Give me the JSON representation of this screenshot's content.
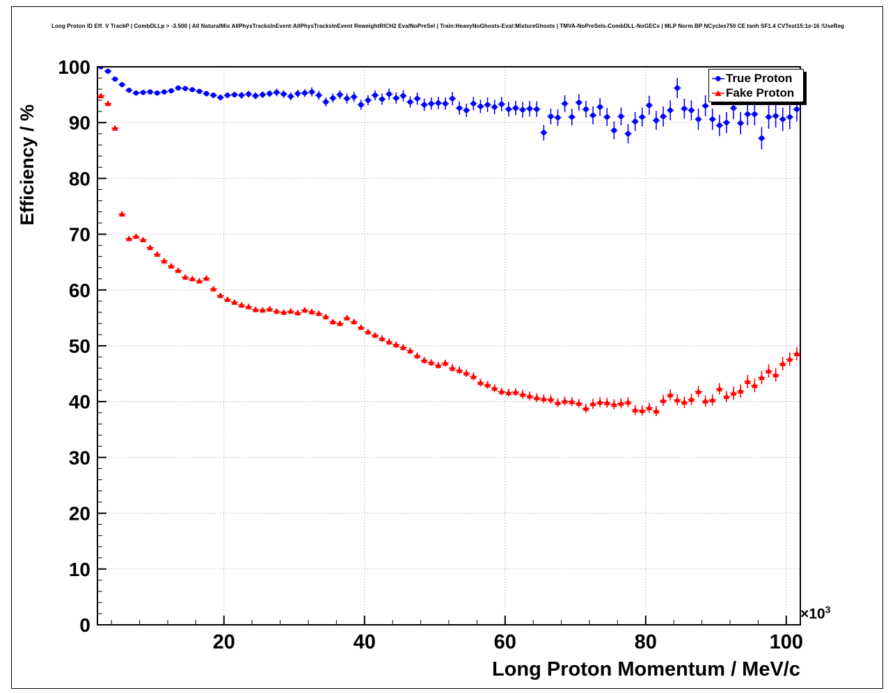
{
  "page": {
    "background": "#ffffff"
  },
  "chart_data": {
    "type": "scatter",
    "title": "Long Proton ID Eff. V TrackP | CombDLLp > -3.500 | All NaturalMix AllPhysTracksInEvent:AllPhysTracksInEvent ReweightRICH2 EvalNoPreSel | Train:HeavyNoGhosts-Eval:MixtureGhosts | TMVA-NoPreSels-CombDLL-NoGECs | MLP Norm BP NCycles750 CE tanh SF1.4 CVTest15:1e-16 !UseReg",
    "xlabel": "Long Proton Momentum / MeV/c",
    "ylabel": "Efficiency / %",
    "x_multiplier_base": "×10",
    "x_multiplier_exp": "3",
    "xlim": [
      2,
      102
    ],
    "ylim": [
      0,
      100
    ],
    "x_ticks": [
      20,
      40,
      60,
      80,
      100
    ],
    "y_ticks": [
      0,
      10,
      20,
      30,
      40,
      50,
      60,
      70,
      80,
      90,
      100
    ],
    "x_minor_step": 4,
    "y_minor_step": 2,
    "grid": true,
    "xerr_halfwidth": 0.5,
    "legend": {
      "position": "top-right",
      "entries": [
        {
          "label": "True Proton",
          "marker": "circle",
          "color": "#0000ff"
        },
        {
          "label": "Fake Proton",
          "marker": "triangle",
          "color": "#ff0000"
        }
      ]
    },
    "x": [
      2.5,
      3.5,
      4.5,
      5.5,
      6.5,
      7.5,
      8.5,
      9.5,
      10.5,
      11.5,
      12.5,
      13.5,
      14.5,
      15.5,
      16.5,
      17.5,
      18.5,
      19.5,
      20.5,
      21.5,
      22.5,
      23.5,
      24.5,
      25.5,
      26.5,
      27.5,
      28.5,
      29.5,
      30.5,
      31.5,
      32.5,
      33.5,
      34.5,
      35.5,
      36.5,
      37.5,
      38.5,
      39.5,
      40.5,
      41.5,
      42.5,
      43.5,
      44.5,
      45.5,
      46.5,
      47.5,
      48.5,
      49.5,
      50.5,
      51.5,
      52.5,
      53.5,
      54.5,
      55.5,
      56.5,
      57.5,
      58.5,
      59.5,
      60.5,
      61.5,
      62.5,
      63.5,
      64.5,
      65.5,
      66.5,
      67.5,
      68.5,
      69.5,
      70.5,
      71.5,
      72.5,
      73.5,
      74.5,
      75.5,
      76.5,
      77.5,
      78.5,
      79.5,
      80.5,
      81.5,
      82.5,
      83.5,
      84.5,
      85.5,
      86.5,
      87.5,
      88.5,
      89.5,
      90.5,
      91.5,
      92.5,
      93.5,
      94.5,
      95.5,
      96.5,
      97.5,
      98.5,
      99.5,
      100.5,
      101.5
    ],
    "series": [
      {
        "name": "True Proton",
        "marker": "circle",
        "color": "#0000ff",
        "values": [
          100.0,
          99.2,
          97.8,
          96.8,
          95.8,
          95.3,
          95.4,
          95.5,
          95.3,
          95.5,
          95.7,
          96.2,
          96.1,
          95.9,
          95.6,
          95.2,
          94.9,
          94.5,
          94.9,
          95.0,
          94.9,
          95.1,
          94.8,
          95.0,
          95.2,
          95.4,
          95.1,
          94.7,
          95.2,
          95.3,
          95.5,
          94.9,
          93.7,
          94.4,
          95.0,
          94.3,
          94.6,
          93.2,
          94.0,
          94.9,
          94.2,
          95.1,
          94.4,
          94.8,
          93.7,
          94.3,
          93.2,
          93.4,
          93.5,
          93.4,
          94.3,
          92.6,
          92.2,
          93.4,
          92.9,
          93.2,
          92.8,
          93.3,
          92.4,
          92.6,
          92.3,
          92.5,
          92.4,
          88.2,
          91.1,
          90.9,
          93.4,
          91.0,
          93.6,
          92.4,
          91.3,
          92.8,
          91.0,
          88.6,
          91.1,
          88.0,
          90.2,
          91.0,
          93.1,
          90.4,
          91.1,
          92.2,
          96.2,
          92.5,
          92.2,
          90.6,
          93.0,
          90.6,
          89.5,
          90.0,
          92.6,
          89.9,
          91.5,
          91.5,
          87.2,
          91.0,
          91.2,
          90.6,
          91.0,
          92.4
        ],
        "yerr": [
          0.2,
          0.2,
          0.2,
          0.2,
          0.2,
          0.3,
          0.3,
          0.3,
          0.3,
          0.3,
          0.4,
          0.4,
          0.4,
          0.4,
          0.4,
          0.5,
          0.5,
          0.5,
          0.5,
          0.5,
          0.6,
          0.6,
          0.6,
          0.6,
          0.6,
          0.7,
          0.7,
          0.7,
          0.7,
          0.7,
          0.8,
          0.8,
          0.8,
          0.8,
          0.8,
          0.9,
          0.9,
          0.9,
          0.9,
          0.9,
          1.0,
          1.0,
          1.0,
          1.0,
          1.0,
          1.1,
          1.1,
          1.1,
          1.1,
          1.1,
          1.2,
          1.2,
          1.2,
          1.2,
          1.2,
          1.3,
          1.3,
          1.3,
          1.3,
          1.3,
          1.4,
          1.4,
          1.4,
          1.4,
          1.4,
          1.5,
          1.5,
          1.5,
          1.5,
          1.5,
          1.6,
          1.6,
          1.6,
          1.6,
          1.6,
          1.7,
          1.7,
          1.7,
          1.7,
          1.7,
          1.8,
          1.8,
          1.8,
          1.8,
          1.8,
          1.9,
          1.9,
          1.9,
          1.9,
          1.9,
          2.0,
          2.0,
          2.0,
          2.0,
          2.0,
          2.1,
          2.1,
          2.1,
          2.2,
          2.2
        ]
      },
      {
        "name": "Fake Proton",
        "marker": "triangle",
        "color": "#ff0000",
        "values": [
          94.8,
          93.4,
          89.0,
          73.6,
          69.2,
          69.6,
          69.0,
          67.6,
          66.4,
          65.2,
          64.3,
          63.5,
          62.3,
          62.0,
          61.6,
          62.1,
          60.2,
          59.0,
          58.3,
          57.8,
          57.3,
          57.0,
          56.5,
          56.4,
          56.6,
          56.2,
          56.0,
          56.2,
          55.9,
          56.4,
          56.1,
          55.8,
          55.2,
          54.3,
          54.0,
          55.0,
          54.3,
          53.3,
          52.5,
          51.9,
          51.3,
          50.7,
          50.2,
          49.7,
          49.1,
          48.2,
          47.4,
          47.0,
          46.5,
          46.9,
          46.0,
          45.6,
          45.1,
          44.5,
          43.4,
          43.0,
          42.4,
          41.8,
          41.6,
          41.7,
          41.3,
          41.0,
          40.7,
          40.5,
          40.4,
          39.8,
          40.1,
          40.0,
          39.7,
          38.8,
          39.6,
          39.9,
          39.8,
          39.5,
          39.7,
          39.9,
          38.5,
          38.4,
          38.9,
          38.3,
          40.2,
          41.2,
          40.3,
          39.9,
          40.4,
          41.8,
          40.1,
          40.3,
          42.3,
          40.9,
          41.5,
          41.9,
          43.6,
          42.9,
          44.3,
          45.5,
          44.8,
          46.8,
          47.6,
          48.6
        ],
        "yerr": [
          0.3,
          0.3,
          0.3,
          0.3,
          0.3,
          0.3,
          0.3,
          0.3,
          0.3,
          0.3,
          0.4,
          0.4,
          0.4,
          0.4,
          0.4,
          0.4,
          0.4,
          0.4,
          0.4,
          0.4,
          0.5,
          0.5,
          0.5,
          0.5,
          0.5,
          0.5,
          0.5,
          0.5,
          0.5,
          0.5,
          0.5,
          0.5,
          0.5,
          0.5,
          0.5,
          0.5,
          0.5,
          0.5,
          0.5,
          0.5,
          0.6,
          0.6,
          0.6,
          0.6,
          0.6,
          0.6,
          0.6,
          0.6,
          0.6,
          0.6,
          0.7,
          0.7,
          0.7,
          0.7,
          0.7,
          0.7,
          0.7,
          0.7,
          0.7,
          0.7,
          0.8,
          0.8,
          0.8,
          0.8,
          0.8,
          0.8,
          0.8,
          0.8,
          0.8,
          0.8,
          0.9,
          0.9,
          0.9,
          0.9,
          0.9,
          0.9,
          0.9,
          0.9,
          0.9,
          0.9,
          1.0,
          1.0,
          1.0,
          1.0,
          1.0,
          1.0,
          1.0,
          1.0,
          1.0,
          1.0,
          1.2,
          1.2,
          1.2,
          1.2,
          1.2,
          1.2,
          1.2,
          1.2,
          1.2,
          1.2
        ]
      }
    ]
  }
}
